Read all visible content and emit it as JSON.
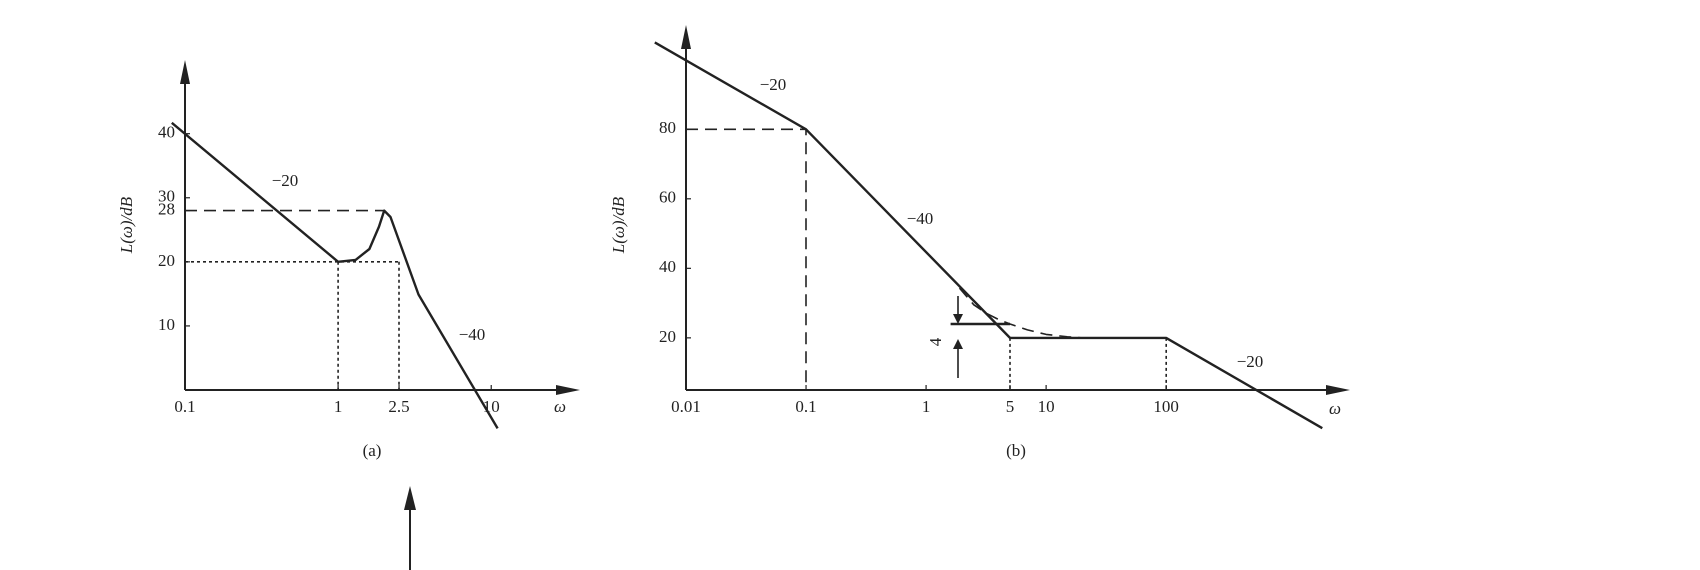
{
  "chart_data": [
    {
      "type": "line",
      "xscale": "log",
      "caption": "(a)",
      "xlabel": "ω",
      "ylabel": "L(ω)/dB",
      "xlim": [
        0.1,
        38
      ],
      "ylim": [
        0,
        51.5
      ],
      "xticks": [
        0.1,
        1,
        2.5,
        10
      ],
      "yticks": [
        10,
        20,
        28,
        30,
        40
      ],
      "annotations": [
        "−20",
        "−40"
      ],
      "series": [
        {
          "color": "#222222",
          "dash": "solid",
          "x": [
            0.082,
            1,
            1.3,
            1.6,
            1.85,
            2.0,
            2.2,
            3.35,
            11
          ],
          "values": [
            41.7,
            20,
            20.3,
            22,
            25.5,
            28,
            27,
            14.9,
            -6
          ]
        },
        {
          "color": "#222222",
          "dash": "dashed",
          "x": [
            0.1,
            2.0
          ],
          "values": [
            28,
            28
          ]
        },
        {
          "color": "#222222",
          "dash": "dotted",
          "x": [
            0.1,
            2.5
          ],
          "values": [
            20,
            20
          ]
        },
        {
          "color": "#222222",
          "dash": "dotted",
          "x": [
            1,
            1
          ],
          "values": [
            20,
            0
          ]
        },
        {
          "color": "#222222",
          "dash": "dotted",
          "x": [
            2.5,
            2.5
          ],
          "values": [
            20,
            0
          ]
        }
      ]
    },
    {
      "type": "line",
      "xscale": "log",
      "caption": "(b)",
      "xlabel": "ω",
      "ylabel": "L(ω)/dB",
      "xlim": [
        0.01,
        3400
      ],
      "ylim": [
        5,
        110
      ],
      "xticks": [
        0.01,
        0.1,
        1,
        5,
        10,
        100
      ],
      "yticks": [
        20,
        40,
        60,
        80
      ],
      "annotations": [
        "−20",
        "−40",
        "−20",
        "4"
      ],
      "series": [
        {
          "color": "#222222",
          "dash": "solid",
          "x": [
            0.0055,
            0.1,
            5,
            100,
            2000
          ],
          "values": [
            105,
            80,
            20,
            20,
            -6
          ]
        },
        {
          "color": "#222222",
          "dash": "dashed",
          "x": [
            1.9,
            2.5,
            3.2,
            4,
            5,
            7,
            10,
            15,
            20
          ],
          "values": [
            34.3,
            29.5,
            27,
            25.3,
            24,
            22.3,
            21,
            20.3,
            20
          ]
        },
        {
          "color": "#222222",
          "dash": "dashed",
          "x": [
            0.01,
            0.1,
            0.1
          ],
          "values": [
            80,
            80,
            5
          ]
        },
        {
          "color": "#222222",
          "dash": "dotted",
          "x": [
            5,
            5
          ],
          "values": [
            20,
            5
          ]
        },
        {
          "color": "#222222",
          "dash": "dotted",
          "x": [
            100,
            100
          ],
          "values": [
            20,
            5
          ]
        },
        {
          "color": "#222222",
          "dash": "solid",
          "x": [
            1.6,
            5
          ],
          "values": [
            24,
            24
          ]
        }
      ]
    }
  ]
}
